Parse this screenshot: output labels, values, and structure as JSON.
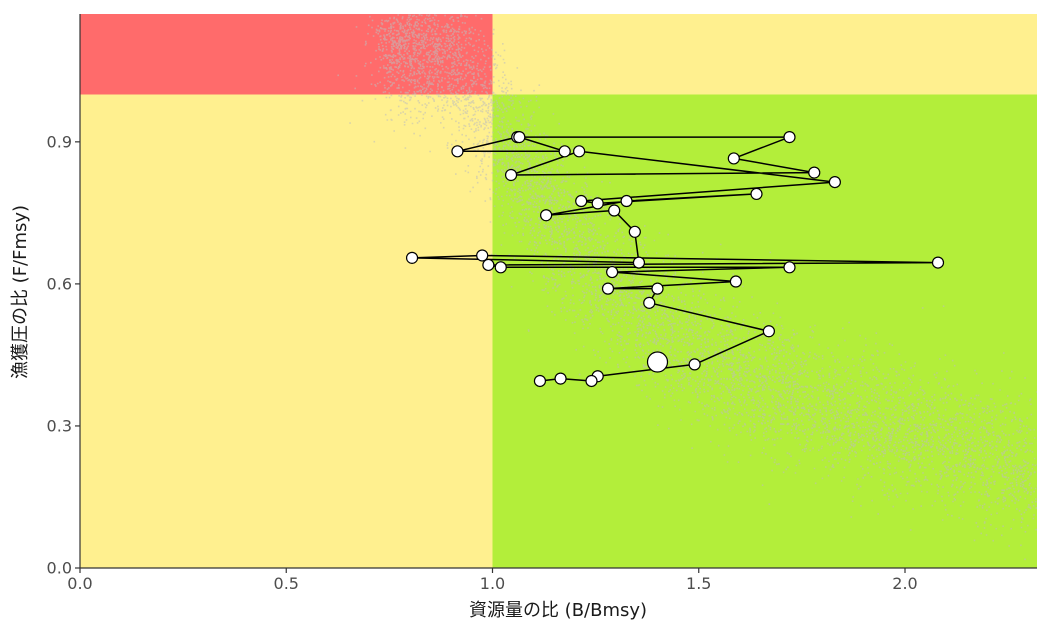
{
  "chart_data": {
    "type": "scatter",
    "title": "",
    "xlabel": "資源量の比 (B/Bmsy)",
    "ylabel": "漁獲圧の比 (F/Fmsy)",
    "xlim": [
      0,
      2.32
    ],
    "ylim": [
      0,
      1.17
    ],
    "x_ticks": [
      0.0,
      0.5,
      1.0,
      1.5,
      2.0
    ],
    "x_tick_labels": [
      "0.0",
      "0.5",
      "1.0",
      "1.5",
      "2.0"
    ],
    "y_ticks": [
      0.0,
      0.3,
      0.6,
      0.9
    ],
    "y_tick_labels": [
      "0.0",
      "0.3",
      "0.6",
      "0.9"
    ],
    "grid": false,
    "zones": [
      {
        "x": [
          0,
          1
        ],
        "y": [
          1,
          1.17
        ],
        "color": "#ff6b6b"
      },
      {
        "x": [
          1,
          2.32
        ],
        "y": [
          1,
          1.17
        ],
        "color": "#fff08f"
      },
      {
        "x": [
          0,
          1
        ],
        "y": [
          0,
          1
        ],
        "color": "#fff08f"
      },
      {
        "x": [
          1,
          2.32
        ],
        "y": [
          0,
          1
        ],
        "color": "#b3ee3a"
      }
    ],
    "colors": {
      "cloud": "#bdbdbd",
      "line": "#000000",
      "point_fill": "#ffffff",
      "point_stroke": "#000000",
      "axis": "#333333"
    },
    "series": [
      {
        "values": [
          [
            1.06,
            0.91
          ],
          [
            0.915,
            0.88
          ],
          [
            1.175,
            0.88
          ],
          [
            1.065,
            0.91
          ],
          [
            1.72,
            0.91
          ],
          [
            1.585,
            0.865
          ],
          [
            1.78,
            0.835
          ],
          [
            1.045,
            0.83
          ],
          [
            1.21,
            0.88
          ],
          [
            1.83,
            0.815
          ],
          [
            1.215,
            0.775
          ],
          [
            1.255,
            0.77
          ],
          [
            1.64,
            0.79
          ],
          [
            1.325,
            0.775
          ],
          [
            1.13,
            0.745
          ],
          [
            1.295,
            0.755
          ],
          [
            1.345,
            0.71
          ],
          [
            1.355,
            0.645
          ],
          [
            0.805,
            0.655
          ],
          [
            0.975,
            0.66
          ],
          [
            2.08,
            0.645
          ],
          [
            0.99,
            0.64
          ],
          [
            1.02,
            0.635
          ],
          [
            1.72,
            0.635
          ],
          [
            1.29,
            0.625
          ],
          [
            1.59,
            0.605
          ],
          [
            1.28,
            0.59
          ],
          [
            1.4,
            0.59
          ],
          [
            1.38,
            0.56
          ],
          [
            1.67,
            0.5
          ],
          [
            1.49,
            0.43
          ],
          [
            1.255,
            0.405
          ],
          [
            1.24,
            0.395
          ],
          [
            1.165,
            0.4
          ],
          [
            1.115,
            0.395
          ]
        ]
      }
    ],
    "current_point": [
      1.4,
      0.435
    ],
    "cloud": {
      "description": "dense grey scatter of simulated points",
      "center_path": [
        [
          0.9,
          1.1
        ],
        [
          1.05,
          0.85
        ],
        [
          1.25,
          0.62
        ],
        [
          1.5,
          0.45
        ],
        [
          1.8,
          0.34
        ],
        [
          2.1,
          0.26
        ],
        [
          2.32,
          0.21
        ]
      ],
      "count": 6500
    }
  }
}
